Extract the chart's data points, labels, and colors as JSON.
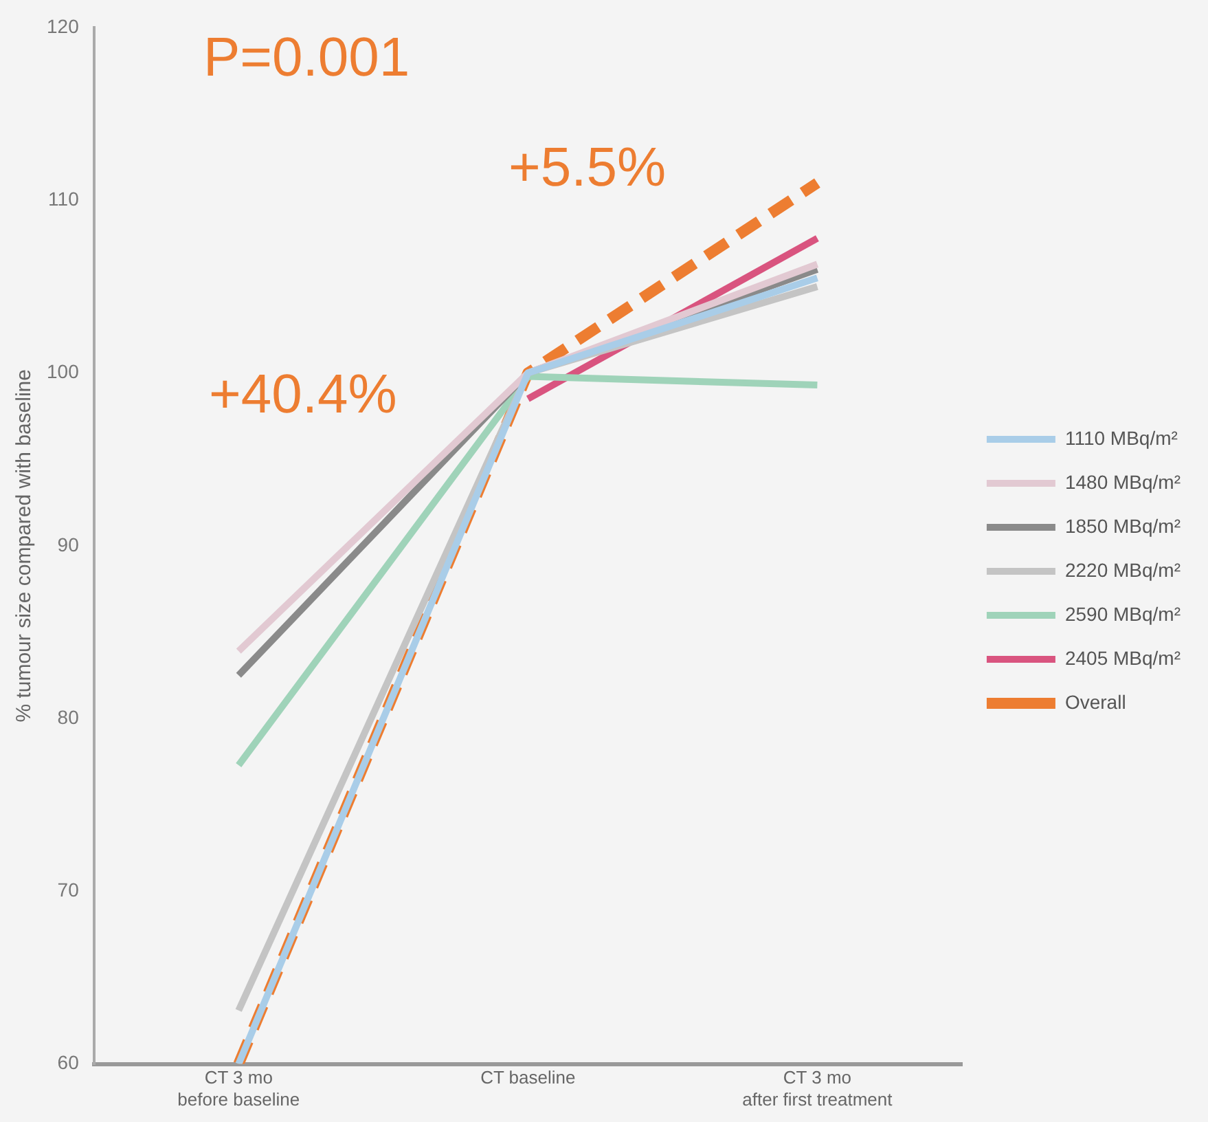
{
  "chart_data": {
    "type": "line",
    "ylabel": "% tumour size compared with baseline",
    "categories": [
      "CT 3 mo before baseline",
      "CT baseline",
      "CT 3 mo after first treatment"
    ],
    "ylim": [
      60,
      120
    ],
    "yticks": [
      60,
      70,
      80,
      90,
      100,
      110,
      120
    ],
    "grid": false,
    "legend": "right",
    "marker": "none",
    "series": [
      {
        "name": "1110 MBq/m²",
        "color": "#a9cde8",
        "values": [
          60,
          100,
          105.5
        ]
      },
      {
        "name": "1480 MBq/m²",
        "color": "#e2c9d2",
        "values": [
          83.9,
          100,
          106.3
        ]
      },
      {
        "name": "1850 MBq/m²",
        "color": "#8a8a8a",
        "values": [
          82.5,
          100,
          106
        ]
      },
      {
        "name": "2220 MBq/m²",
        "color": "#c4c4c4",
        "values": [
          63.1,
          100,
          105
        ]
      },
      {
        "name": "2590 MBq/m²",
        "color": "#9fd3b9",
        "values": [
          77.3,
          99.8,
          99.3
        ]
      },
      {
        "name": "2405 MBq/m²",
        "color": "#d9547f",
        "values": [
          null,
          98.5,
          107.8
        ]
      },
      {
        "name": "Overall",
        "color": "#ed7d31",
        "line_style": "dashed",
        "values": [
          60,
          100,
          111
        ]
      }
    ],
    "annotations": [
      "P=0.001",
      "+40.4%",
      "+5.5%"
    ]
  }
}
